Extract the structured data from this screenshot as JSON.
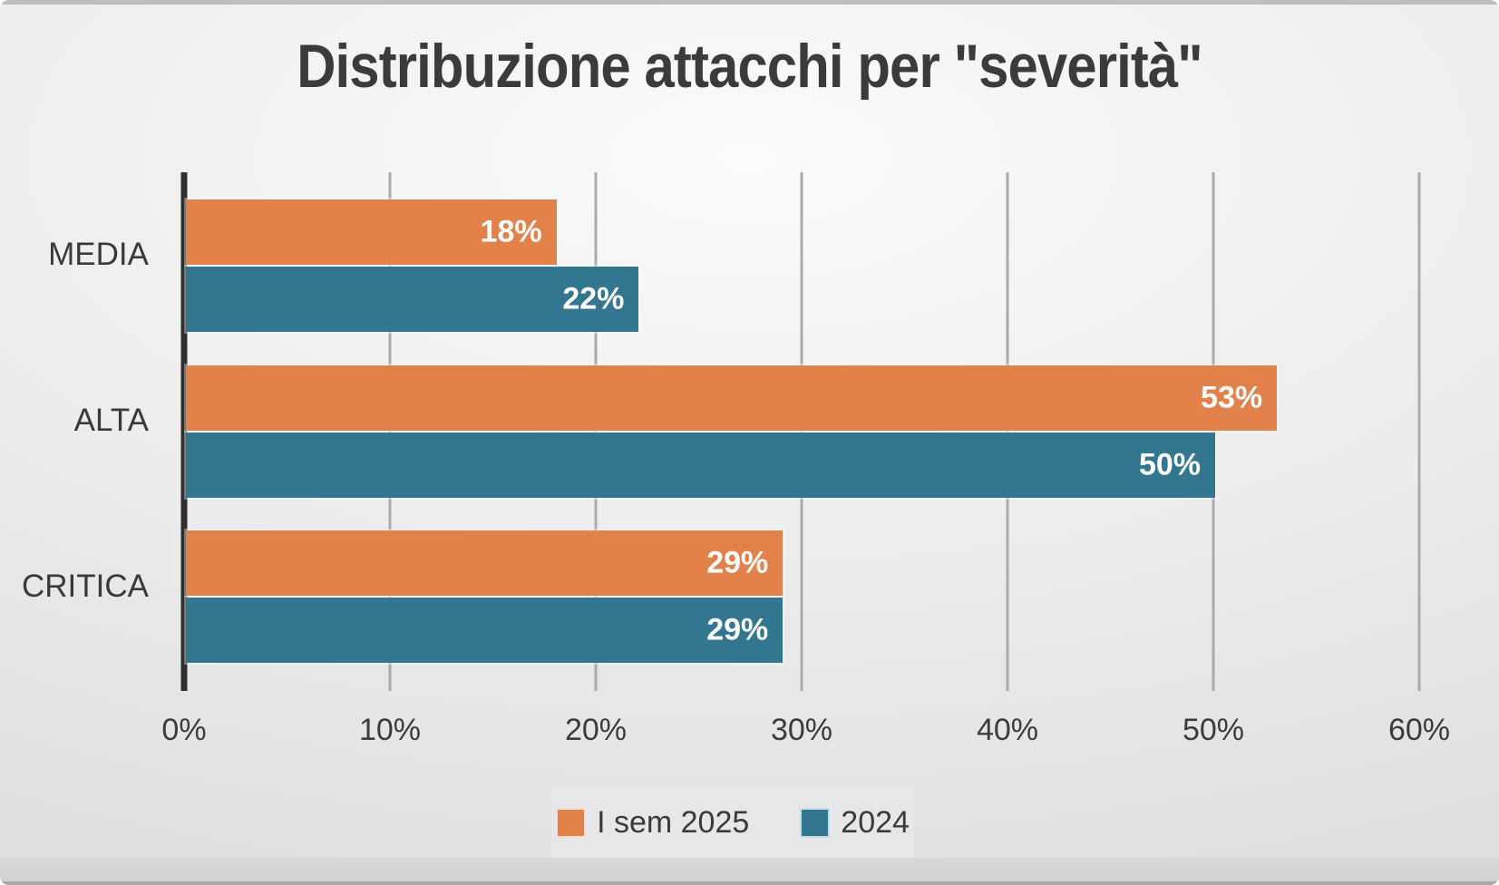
{
  "chart_data": {
    "type": "bar",
    "orientation": "horizontal",
    "title": "Distribuzione attacchi per \"severità\"",
    "categories": [
      "MEDIA",
      "ALTA",
      "CRITICA"
    ],
    "series": [
      {
        "name": "I sem 2025",
        "color": "#e3814a",
        "values": [
          18,
          53,
          29
        ]
      },
      {
        "name": "2024",
        "color": "#337690",
        "values": [
          22,
          50,
          29
        ]
      }
    ],
    "value_suffix": "%",
    "x_ticks": [
      "0%",
      "10%",
      "20%",
      "30%",
      "40%",
      "50%",
      "60%"
    ],
    "xlim": [
      0,
      60
    ],
    "grid": true,
    "legend_position": "bottom",
    "colors": {
      "title_text": "#3b3b3b",
      "axis_line": "#2f2f2f",
      "gridline": "#ababab",
      "label_text": "#3a3a3a",
      "bar_value_text": "#ffffff",
      "legend_background": "#e7e7e7",
      "background_light": "#fafafa",
      "background_dark": "#d6d6d6"
    }
  }
}
